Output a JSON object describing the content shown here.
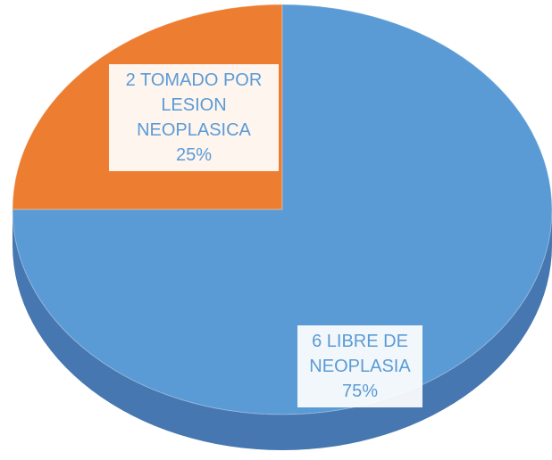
{
  "chart_data": {
    "type": "pie",
    "categories": [
      "TOMADO POR LESION NEOPLASICA",
      "LIBRE DE NEOPLASIA"
    ],
    "counts": [
      2,
      6
    ],
    "values": [
      25,
      75
    ],
    "value_labels": [
      "25%",
      "75%"
    ],
    "colors": [
      "#ed7d31",
      "#5b9bd5"
    ]
  }
}
